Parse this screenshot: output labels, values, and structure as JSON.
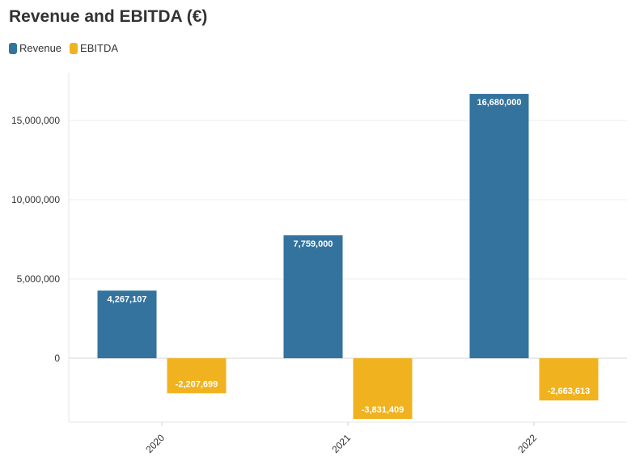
{
  "chart_data": {
    "type": "bar",
    "title": "Revenue and EBITDA (€)",
    "categories": [
      "2020",
      "2021",
      "2022"
    ],
    "series": [
      {
        "name": "Revenue",
        "color": "#33739e",
        "values": [
          4267107,
          7759000,
          16680000
        ],
        "labels": [
          "4,267,107",
          "7,759,000",
          "16,680,000"
        ]
      },
      {
        "name": "EBITDA",
        "color": "#f0b31f",
        "values": [
          -2207699,
          -3831409,
          -2663613
        ],
        "labels": [
          "-2,207,699",
          "-3,831,409",
          "-2,663,613"
        ]
      }
    ],
    "yticks": [
      0,
      5000000,
      10000000,
      15000000
    ],
    "ytick_labels": [
      "0",
      "5,000,000",
      "10,000,000",
      "15,000,000"
    ],
    "ylim": [
      -4000000,
      18000000
    ],
    "grid": true,
    "legend_position": "top-left"
  }
}
